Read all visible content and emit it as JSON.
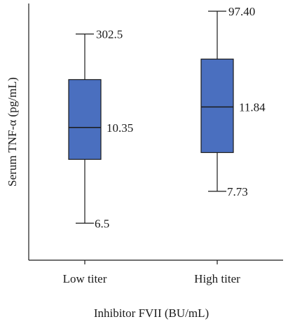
{
  "chart_data": {
    "type": "box",
    "xlabel": "Inhibitor FVII (BU/mL)",
    "ylabel": "Serum TNF-α (pg/mL)",
    "categories": [
      "Low titer",
      "High titer"
    ],
    "box_color": "#4a6fbf",
    "series": [
      {
        "category": "Low titer",
        "min_label": "6.5",
        "median_label": "10.35",
        "max_label": "302.5",
        "whisker_low": 0.11,
        "q1": 0.39,
        "median": 0.53,
        "q3": 0.74,
        "whisker_high": 0.94
      },
      {
        "category": "High titer",
        "min_label": "7.73",
        "median_label": "11.84",
        "max_label": "97.40",
        "whisker_low": 0.25,
        "q1": 0.42,
        "median": 0.62,
        "q3": 0.83,
        "whisker_high": 1.04
      }
    ],
    "yaxis_ticks": "none",
    "grid": false
  }
}
